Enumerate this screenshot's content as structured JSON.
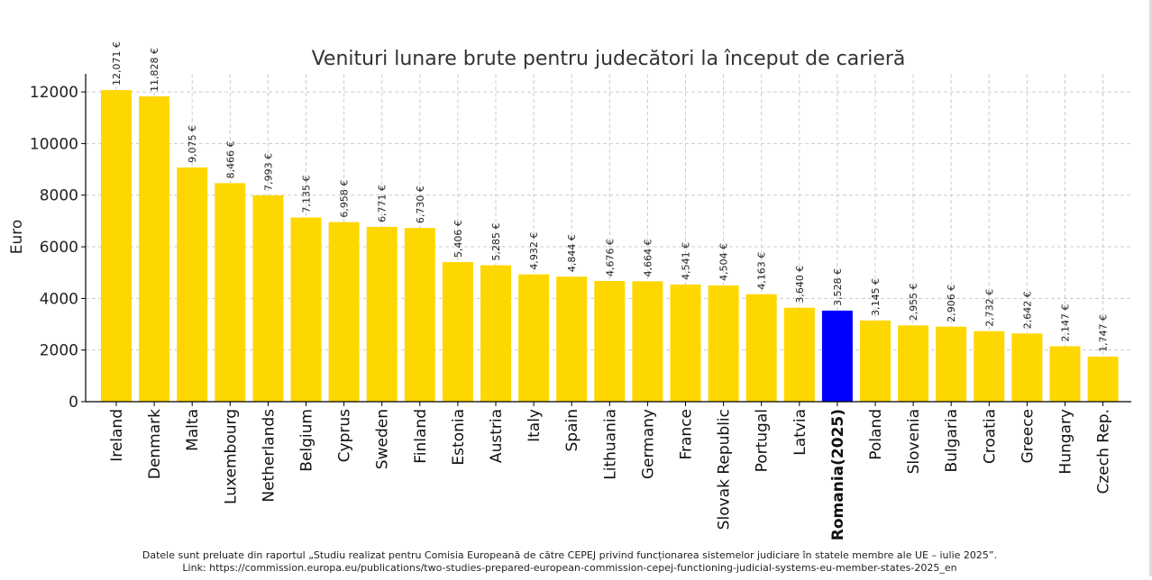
{
  "chart_data": {
    "type": "bar",
    "title": "Venituri lunare brute pentru judecători la început de carieră",
    "xlabel": "",
    "ylabel": "Euro",
    "ylim": [
      0,
      12700
    ],
    "yticks": [
      0,
      2000,
      4000,
      6000,
      8000,
      10000,
      12000
    ],
    "grid": true,
    "categories": [
      "Ireland",
      "Denmark",
      "Malta",
      "Luxembourg",
      "Netherlands",
      "Belgium",
      "Cyprus",
      "Sweden",
      "Finland",
      "Estonia",
      "Austria",
      "Italy",
      "Spain",
      "Lithuania",
      "Germany",
      "France",
      "Slovak Republic",
      "Portugal",
      "Latvia",
      "Romania(2025)",
      "Poland",
      "Slovenia",
      "Bulgaria",
      "Croatia",
      "Greece",
      "Hungary",
      "Czech Rep."
    ],
    "values": [
      12071,
      11828,
      9075,
      8466,
      7993,
      7135,
      6958,
      6771,
      6730,
      5406,
      5285,
      4932,
      4844,
      4676,
      4664,
      4541,
      4504,
      4163,
      3640,
      3528,
      3145,
      2955,
      2906,
      2732,
      2642,
      2147,
      1747
    ],
    "value_labels": [
      "12,071 €",
      "11,828 €",
      "9,075 €",
      "8,466 €",
      "7,993 €",
      "7,135 €",
      "6,958 €",
      "6,771 €",
      "6,730 €",
      "5,406 €",
      "5,285 €",
      "4,932 €",
      "4,844 €",
      "4,676 €",
      "4,664 €",
      "4,541 €",
      "4,504 €",
      "4,163 €",
      "3,640 €",
      "3,528 €",
      "3,145 €",
      "2,955 €",
      "2,906 €",
      "2,732 €",
      "2,642 €",
      "2,147 €",
      "1,747 €"
    ],
    "highlight_category": "Romania(2025)",
    "colors": {
      "bar": "#FFD700",
      "highlight": "#0000FF",
      "grid": "#cccccc",
      "axis": "#000000",
      "text": "#222222"
    }
  },
  "footer": {
    "source_line": "Datele sunt preluate din raportul „Studiu realizat pentru Comisia Europeană de către CEPEJ privind funcționarea sistemelor judiciare în statele membre ale UE – iulie 2025”.",
    "link_line": "Link: https://commission.europa.eu/publications/two-studies-prepared-european-commission-cepej-functioning-judicial-systems-eu-member-states-2025_en"
  }
}
